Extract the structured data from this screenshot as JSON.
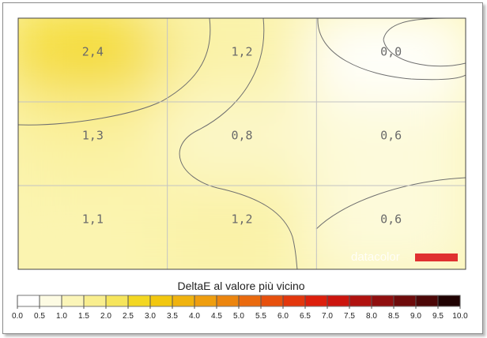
{
  "chart_data": {
    "type": "heatmap",
    "rows": 3,
    "cols": 3,
    "cells": [
      [
        "2,4",
        "1,2",
        "0,0"
      ],
      [
        "1,3",
        "0,8",
        "0,6"
      ],
      [
        "1,1",
        "1,2",
        "0,6"
      ]
    ],
    "values": [
      [
        2.4,
        1.2,
        0.0
      ],
      [
        1.3,
        0.8,
        0.6
      ],
      [
        1.1,
        1.2,
        0.6
      ]
    ],
    "grid": true,
    "watermark": "datacolor",
    "legend_title": "DeltaE al valore più vicino",
    "scale_ticks": [
      "0.0",
      "0.5",
      "1.0",
      "1.5",
      "2.0",
      "2.5",
      "3.0",
      "3.5",
      "4.0",
      "4.5",
      "5.0",
      "5.5",
      "6.0",
      "6.5",
      "7.0",
      "7.5",
      "8.0",
      "8.5",
      "9.0",
      "9.5",
      "10.0"
    ],
    "scale_colors": [
      "#ffffff",
      "#fdfbe3",
      "#fbf5b8",
      "#f9ee8e",
      "#f6e55c",
      "#f3d722",
      "#f2c70f",
      "#f0b30f",
      "#ef9e0f",
      "#ec850e",
      "#ea6a0e",
      "#e7500d",
      "#e3370d",
      "#dd1f0c",
      "#cc150e",
      "#b0120f",
      "#900f0f",
      "#6e0b0b",
      "#4c0707",
      "#200202"
    ]
  }
}
